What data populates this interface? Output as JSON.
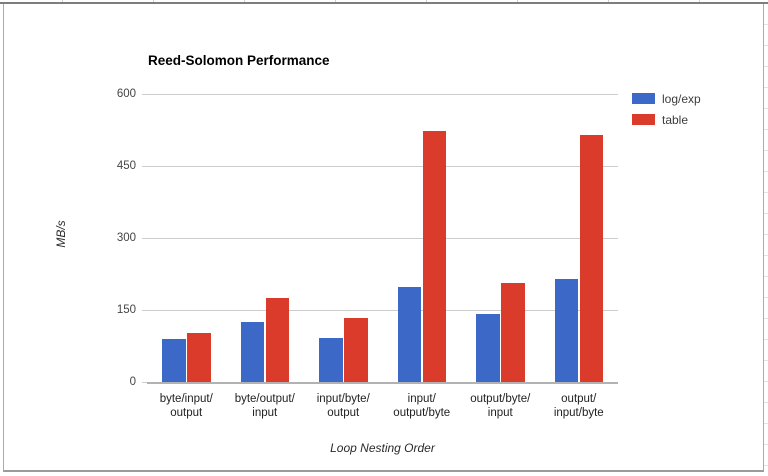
{
  "window": {
    "panel_border_color": "#ababab",
    "top_edge_color": "#7d7d7d",
    "sheet_grid_color": "#e3e3e3",
    "background": "#ffffff"
  },
  "chart_data": {
    "type": "bar",
    "title": "Reed-Solomon Performance",
    "xlabel": "Loop Nesting Order",
    "ylabel": "MB/s",
    "categories": [
      "byte/input/output",
      "byte/output/input",
      "input/byte/output",
      "input/output/byte",
      "output/byte/input",
      "output/input/byte"
    ],
    "category_label_lines": [
      [
        "byte/input/",
        "output"
      ],
      [
        "byte/output/",
        "input"
      ],
      [
        "input/byte/",
        "output"
      ],
      [
        "input/",
        "output/byte"
      ],
      [
        "output/byte/",
        "input"
      ],
      [
        "output/",
        "input/byte"
      ]
    ],
    "series": [
      {
        "name": "log/exp",
        "color": "#3C69C7",
        "values": [
          92,
          127,
          93,
          199,
          143,
          217
        ]
      },
      {
        "name": "table",
        "color": "#DB3B2B",
        "values": [
          105,
          178,
          135,
          525,
          209,
          517
        ]
      }
    ],
    "ylim": [
      0,
      600
    ],
    "yticks": [
      0,
      150,
      300,
      450,
      600
    ],
    "grid": true,
    "legend_position": "right",
    "colors": {
      "gridline": "#cccccc",
      "baseline": "#b2b2b2",
      "y_tick_text": "#454545",
      "category_text": "#1f1f1f",
      "title_text": "#000000"
    }
  }
}
